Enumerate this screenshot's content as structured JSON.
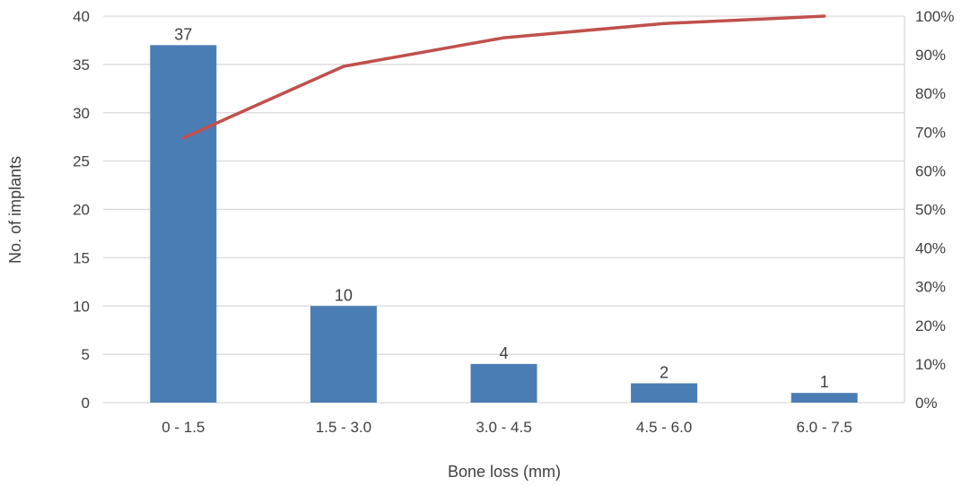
{
  "chart_data": {
    "type": "bar",
    "categories": [
      "0 - 1.5",
      "1.5 - 3.0",
      "3.0 - 4.5",
      "4.5 - 6.0",
      "6.0 - 7.5"
    ],
    "series": [
      {
        "values": [
          37,
          10,
          4,
          2,
          1
        ],
        "kind": "bar",
        "axis": "left"
      },
      {
        "values": [
          68.5,
          87.0,
          94.4,
          98.1,
          100.0
        ],
        "kind": "line",
        "axis": "right",
        "unit": "%"
      }
    ],
    "data_labels": [
      "37",
      "10",
      "4",
      "2",
      "1"
    ],
    "xlabel": "Bone loss (mm)",
    "ylabel": "No. of implants",
    "ylim": [
      0,
      40
    ],
    "yticks": [
      "0",
      "5",
      "10",
      "15",
      "20",
      "25",
      "30",
      "35",
      "40"
    ],
    "y2lim": [
      0,
      100
    ],
    "y2ticks": [
      "0%",
      "10%",
      "20%",
      "30%",
      "40%",
      "50%",
      "60%",
      "70%",
      "80%",
      "90%",
      "100%"
    ],
    "grid": true,
    "colors": {
      "bar": "#4a7db3",
      "line": "#c0504d",
      "grid": "#d9d9d9",
      "text": "#404040"
    }
  }
}
